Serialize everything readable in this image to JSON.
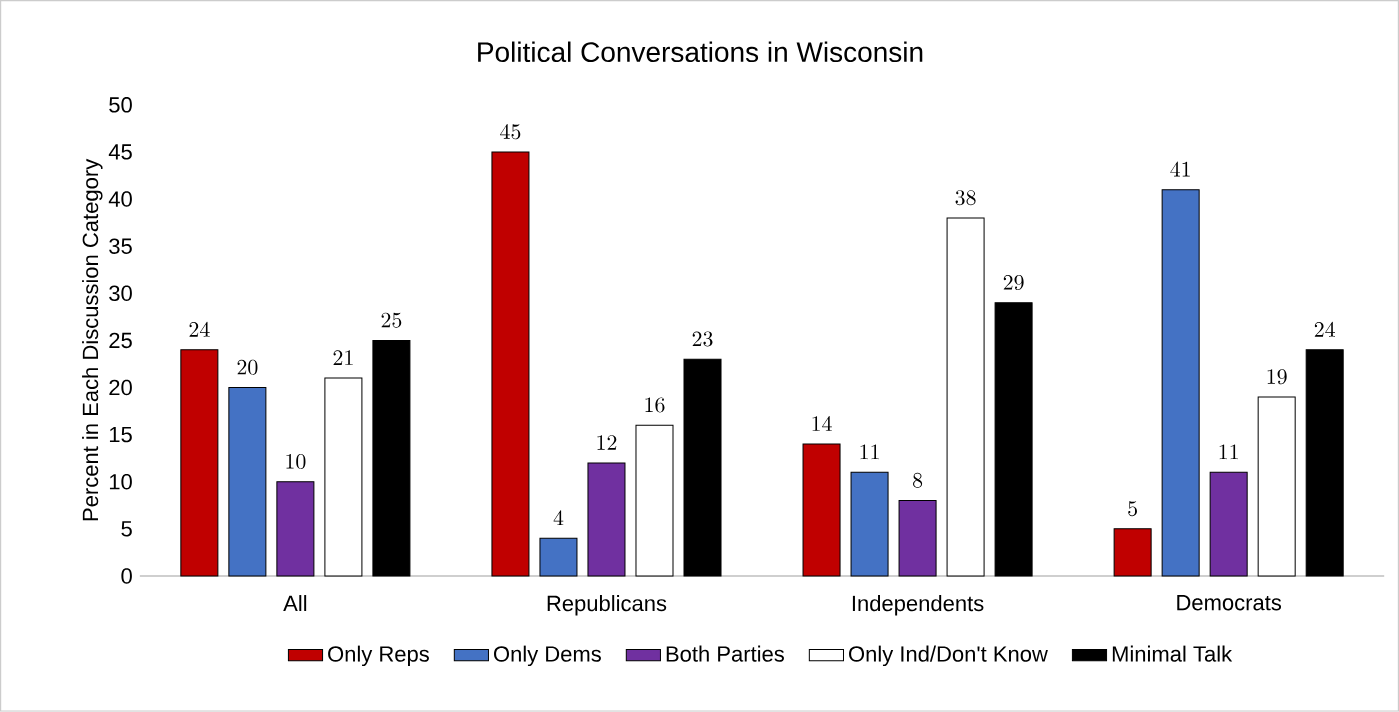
{
  "chart_data": {
    "type": "bar",
    "title": "Political Conversations in Wisconsin",
    "ylabel": "Percent in Each Discussion Category",
    "categories": [
      "All",
      "Republicans",
      "Independents",
      "Democrats"
    ],
    "series": [
      {
        "name": "Only Reps",
        "color": "#c00000",
        "values": [
          24,
          45,
          14,
          5
        ]
      },
      {
        "name": "Only Dems",
        "color": "#4472c4",
        "values": [
          20,
          4,
          11,
          41
        ]
      },
      {
        "name": "Both Parties",
        "color": "#7030a0",
        "values": [
          10,
          12,
          8,
          11
        ]
      },
      {
        "name": "Only Ind/Don't Know",
        "color": "#ffffff",
        "values": [
          21,
          16,
          38,
          19
        ]
      },
      {
        "name": "Minimal Talk",
        "color": "#000000",
        "values": [
          25,
          23,
          29,
          24
        ]
      }
    ],
    "ylim": [
      0,
      50
    ],
    "yticks": [
      0,
      5,
      10,
      15,
      20,
      25,
      30,
      35,
      40,
      45,
      50
    ],
    "data_labels": true,
    "legend": "bottom",
    "grid": false
  }
}
